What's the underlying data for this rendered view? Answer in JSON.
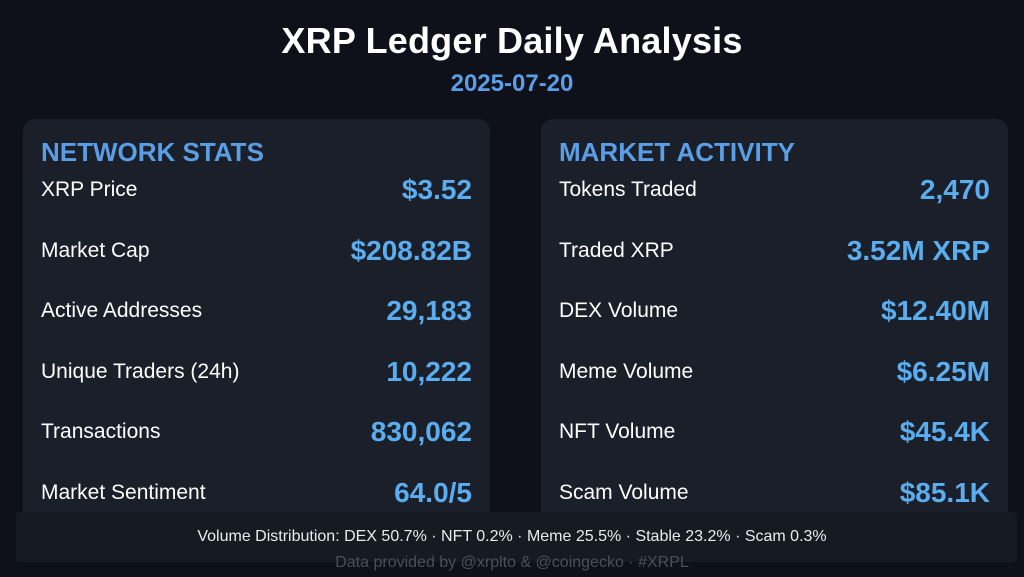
{
  "header": {
    "title": "XRP Ledger Daily Analysis",
    "date": "2025-07-20"
  },
  "network_stats": {
    "heading": "NETWORK STATS",
    "rows": [
      {
        "label": "XRP Price",
        "value": "$3.52"
      },
      {
        "label": "Market Cap",
        "value": "$208.82B"
      },
      {
        "label": "Active Addresses",
        "value": "29,183"
      },
      {
        "label": "Unique Traders (24h)",
        "value": "10,222"
      },
      {
        "label": "Transactions",
        "value": "830,062"
      },
      {
        "label": "Market Sentiment",
        "value": "64.0/5"
      }
    ]
  },
  "market_activity": {
    "heading": "MARKET ACTIVITY",
    "rows": [
      {
        "label": "Tokens Traded",
        "value": "2,470"
      },
      {
        "label": "Traded XRP",
        "value": "3.52M XRP"
      },
      {
        "label": "DEX Volume",
        "value": "$12.40M"
      },
      {
        "label": "Meme Volume",
        "value": "$6.25M"
      },
      {
        "label": "NFT Volume",
        "value": "$45.4K"
      },
      {
        "label": "Scam Volume",
        "value": "$85.1K"
      }
    ]
  },
  "footer": {
    "distribution": "Volume Distribution: DEX 50.7% · NFT 0.2% · Meme 25.5% · Stable 23.2% · Scam 0.3%",
    "credits": "Data provided by @xrplto & @coingecko · #XRPL"
  },
  "colors": {
    "background": "#0e111a",
    "panel": "#1b1f2a",
    "accent": "#5a9ee6",
    "value": "#5aaef0"
  }
}
